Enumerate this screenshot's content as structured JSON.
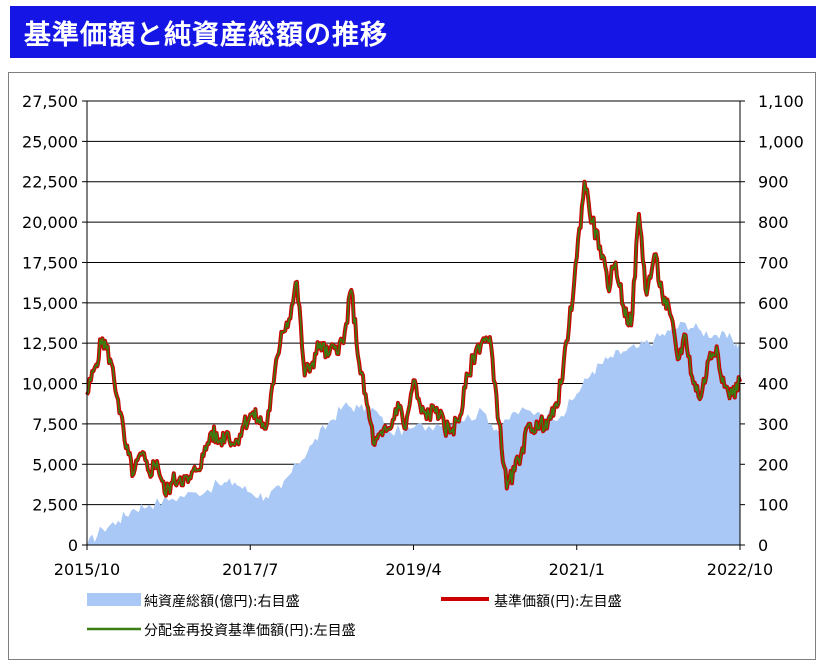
{
  "header": {
    "title": "基準価額と純資産総額の推移"
  },
  "colors": {
    "title_bg": "#1515e6",
    "nav": "#cc0000",
    "reinvest": "#3a7d12",
    "aum": "#a9c8f5"
  },
  "chart_data": {
    "type": "line",
    "x_start": "2015-10",
    "x_end": "2022-10",
    "x_tick_labels": [
      "2015/10",
      "2017/7",
      "2019/4",
      "2021/1",
      "2022/10"
    ],
    "y_left": {
      "min": 0,
      "max": 27500,
      "ticks": [
        "0",
        "2,500",
        "5,000",
        "7,500",
        "10,000",
        "12,500",
        "15,000",
        "17,500",
        "20,000",
        "22,500",
        "25,000",
        "27,500"
      ]
    },
    "y_right": {
      "min": 0,
      "max": 1100,
      "ticks": [
        "0",
        "100",
        "200",
        "300",
        "400",
        "500",
        "600",
        "700",
        "800",
        "900",
        "1,000",
        "1,100"
      ]
    },
    "grid": "horizontal",
    "legend": [
      "純資産総額(億円):右目盛",
      "基準価額(円):左目盛",
      "分配金再投資基準価額(円):左目盛"
    ],
    "series": [
      {
        "name": "純資産総額(億円):右目盛",
        "kind": "area",
        "axis": "right",
        "color": "#a9c8f5",
        "points": [
          [
            "2015-10",
            0
          ],
          [
            "2015-12",
            40
          ],
          [
            "2016-02",
            60
          ],
          [
            "2016-04",
            90
          ],
          [
            "2016-06",
            100
          ],
          [
            "2016-09",
            115
          ],
          [
            "2016-12",
            130
          ],
          [
            "2017-03",
            150
          ],
          [
            "2017-05",
            155
          ],
          [
            "2017-07",
            130
          ],
          [
            "2017-09",
            120
          ],
          [
            "2017-11",
            140
          ],
          [
            "2018-01",
            200
          ],
          [
            "2018-03",
            250
          ],
          [
            "2018-05",
            300
          ],
          [
            "2018-07",
            345
          ],
          [
            "2018-09",
            340
          ],
          [
            "2018-11",
            335
          ],
          [
            "2019-01",
            280
          ],
          [
            "2019-04",
            290
          ],
          [
            "2019-07",
            300
          ],
          [
            "2019-10",
            310
          ],
          [
            "2020-01",
            330
          ],
          [
            "2020-03",
            280
          ],
          [
            "2020-05",
            330
          ],
          [
            "2020-08",
            330
          ],
          [
            "2020-11",
            320
          ],
          [
            "2021-01",
            375
          ],
          [
            "2021-03",
            430
          ],
          [
            "2021-05",
            460
          ],
          [
            "2021-07",
            480
          ],
          [
            "2021-09",
            490
          ],
          [
            "2021-11",
            510
          ],
          [
            "2022-01",
            530
          ],
          [
            "2022-03",
            550
          ],
          [
            "2022-05",
            530
          ],
          [
            "2022-07",
            520
          ],
          [
            "2022-09",
            510
          ],
          [
            "2022-10",
            490
          ]
        ]
      },
      {
        "name": "基準価額(円):左目盛",
        "kind": "line",
        "axis": "left",
        "color": "#cc0000",
        "points": [
          [
            "2015-10",
            9300
          ],
          [
            "2015-11",
            11000
          ],
          [
            "2015-12",
            12800
          ],
          [
            "2016-01",
            11500
          ],
          [
            "2016-02",
            9000
          ],
          [
            "2016-03",
            6000
          ],
          [
            "2016-04",
            4400
          ],
          [
            "2016-05",
            5600
          ],
          [
            "2016-06",
            4500
          ],
          [
            "2016-07",
            5200
          ],
          [
            "2016-08",
            3200
          ],
          [
            "2016-09",
            3900
          ],
          [
            "2016-10",
            4200
          ],
          [
            "2016-11",
            3900
          ],
          [
            "2016-12",
            4600
          ],
          [
            "2017-01",
            5500
          ],
          [
            "2017-02",
            7000
          ],
          [
            "2017-03",
            6400
          ],
          [
            "2017-04",
            7000
          ],
          [
            "2017-05",
            6200
          ],
          [
            "2017-06",
            7300
          ],
          [
            "2017-07",
            8100
          ],
          [
            "2017-08",
            7800
          ],
          [
            "2017-09",
            7200
          ],
          [
            "2017-10",
            10000
          ],
          [
            "2017-11",
            13200
          ],
          [
            "2017-12",
            14000
          ],
          [
            "2018-01",
            16300
          ],
          [
            "2018-02",
            10500
          ],
          [
            "2018-03",
            11300
          ],
          [
            "2018-04",
            12500
          ],
          [
            "2018-05",
            11700
          ],
          [
            "2018-06",
            12300
          ],
          [
            "2018-07",
            12500
          ],
          [
            "2018-08",
            15800
          ],
          [
            "2018-09",
            11300
          ],
          [
            "2018-10",
            8700
          ],
          [
            "2018-11",
            6200
          ],
          [
            "2018-12",
            6800
          ],
          [
            "2019-01",
            7200
          ],
          [
            "2019-02",
            8800
          ],
          [
            "2019-03",
            7200
          ],
          [
            "2019-04",
            10200
          ],
          [
            "2019-05",
            8200
          ],
          [
            "2019-06",
            8100
          ],
          [
            "2019-07",
            8500
          ],
          [
            "2019-08",
            7200
          ],
          [
            "2019-09",
            7200
          ],
          [
            "2019-10",
            8000
          ],
          [
            "2019-11",
            10500
          ],
          [
            "2019-12",
            12000
          ],
          [
            "2020-01",
            12800
          ],
          [
            "2020-02",
            12300
          ],
          [
            "2020-03",
            7600
          ],
          [
            "2020-04",
            3500
          ],
          [
            "2020-05",
            4600
          ],
          [
            "2020-06",
            6000
          ],
          [
            "2020-07",
            7500
          ],
          [
            "2020-08",
            7200
          ],
          [
            "2020-09",
            7700
          ],
          [
            "2020-10",
            8000
          ],
          [
            "2020-11",
            10000
          ],
          [
            "2020-12",
            13500
          ],
          [
            "2021-01",
            17800
          ],
          [
            "2021-02",
            22500
          ],
          [
            "2021-03",
            20000
          ],
          [
            "2021-04",
            18500
          ],
          [
            "2021-05",
            16000
          ],
          [
            "2021-06",
            17500
          ],
          [
            "2021-07",
            14800
          ],
          [
            "2021-08",
            13600
          ],
          [
            "2021-09",
            20500
          ],
          [
            "2021-10",
            15500
          ],
          [
            "2021-11",
            18000
          ],
          [
            "2021-12",
            15500
          ],
          [
            "2022-01",
            14300
          ],
          [
            "2022-02",
            11500
          ],
          [
            "2022-03",
            13000
          ],
          [
            "2022-04",
            10000
          ],
          [
            "2022-05",
            9200
          ],
          [
            "2022-06",
            11500
          ],
          [
            "2022-07",
            12300
          ],
          [
            "2022-08",
            9800
          ],
          [
            "2022-09",
            9300
          ],
          [
            "2022-10",
            10100
          ]
        ]
      },
      {
        "name": "分配金再投資基準価額(円):左目盛",
        "kind": "line",
        "axis": "left",
        "color": "#3a7d12",
        "points": [
          [
            "2015-10",
            9300
          ],
          [
            "2015-11",
            11000
          ],
          [
            "2015-12",
            12800
          ],
          [
            "2016-01",
            11500
          ],
          [
            "2016-02",
            9000
          ],
          [
            "2016-03",
            6000
          ],
          [
            "2016-04",
            4400
          ],
          [
            "2016-05",
            5600
          ],
          [
            "2016-06",
            4500
          ],
          [
            "2016-07",
            5200
          ],
          [
            "2016-08",
            3200
          ],
          [
            "2016-09",
            3900
          ],
          [
            "2016-10",
            4200
          ],
          [
            "2016-11",
            3900
          ],
          [
            "2016-12",
            4600
          ],
          [
            "2017-01",
            5500
          ],
          [
            "2017-02",
            7000
          ],
          [
            "2017-03",
            6400
          ],
          [
            "2017-04",
            7000
          ],
          [
            "2017-05",
            6200
          ],
          [
            "2017-06",
            7300
          ],
          [
            "2017-07",
            8100
          ],
          [
            "2017-08",
            7800
          ],
          [
            "2017-09",
            7200
          ],
          [
            "2017-10",
            10000
          ],
          [
            "2017-11",
            13200
          ],
          [
            "2017-12",
            14000
          ],
          [
            "2018-01",
            16300
          ],
          [
            "2018-02",
            10500
          ],
          [
            "2018-03",
            11300
          ],
          [
            "2018-04",
            12500
          ],
          [
            "2018-05",
            11700
          ],
          [
            "2018-06",
            12300
          ],
          [
            "2018-07",
            12500
          ],
          [
            "2018-08",
            15800
          ],
          [
            "2018-09",
            11300
          ],
          [
            "2018-10",
            8700
          ],
          [
            "2018-11",
            6200
          ],
          [
            "2018-12",
            6800
          ],
          [
            "2019-01",
            7200
          ],
          [
            "2019-02",
            8800
          ],
          [
            "2019-03",
            7200
          ],
          [
            "2019-04",
            10200
          ],
          [
            "2019-05",
            8200
          ],
          [
            "2019-06",
            8100
          ],
          [
            "2019-07",
            8500
          ],
          [
            "2019-08",
            7200
          ],
          [
            "2019-09",
            7200
          ],
          [
            "2019-10",
            8000
          ],
          [
            "2019-11",
            10500
          ],
          [
            "2019-12",
            12000
          ],
          [
            "2020-01",
            12800
          ],
          [
            "2020-02",
            12300
          ],
          [
            "2020-03",
            7600
          ],
          [
            "2020-04",
            3500
          ],
          [
            "2020-05",
            4600
          ],
          [
            "2020-06",
            6000
          ],
          [
            "2020-07",
            7500
          ],
          [
            "2020-08",
            7200
          ],
          [
            "2020-09",
            7700
          ],
          [
            "2020-10",
            8000
          ],
          [
            "2020-11",
            10000
          ],
          [
            "2020-12",
            13500
          ],
          [
            "2021-01",
            17800
          ],
          [
            "2021-02",
            22500
          ],
          [
            "2021-03",
            20000
          ],
          [
            "2021-04",
            18500
          ],
          [
            "2021-05",
            16000
          ],
          [
            "2021-06",
            17500
          ],
          [
            "2021-07",
            14800
          ],
          [
            "2021-08",
            13600
          ],
          [
            "2021-09",
            20500
          ],
          [
            "2021-10",
            15500
          ],
          [
            "2021-11",
            18000
          ],
          [
            "2021-12",
            15500
          ],
          [
            "2022-01",
            14300
          ],
          [
            "2022-02",
            11500
          ],
          [
            "2022-03",
            13000
          ],
          [
            "2022-04",
            10000
          ],
          [
            "2022-05",
            9200
          ],
          [
            "2022-06",
            11500
          ],
          [
            "2022-07",
            12300
          ],
          [
            "2022-08",
            9800
          ],
          [
            "2022-09",
            9300
          ],
          [
            "2022-10",
            10100
          ]
        ]
      }
    ]
  }
}
